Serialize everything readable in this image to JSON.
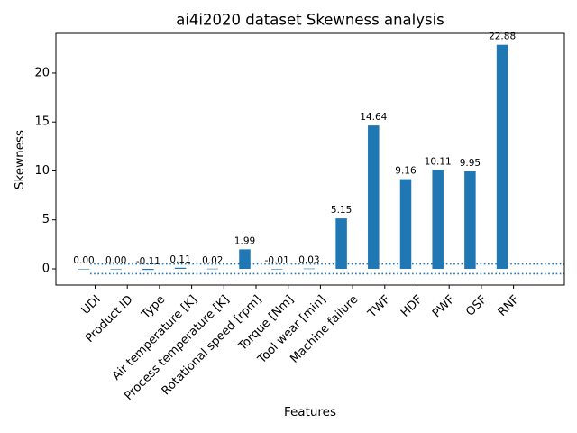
{
  "chart_data": {
    "type": "bar",
    "title": "ai4i2020 dataset Skewness analysis",
    "x_label": "Features",
    "y_label": "Skewness",
    "categories": [
      "UDI",
      "Product ID",
      "Type",
      "Air temperature [K]",
      "Process temperature [K]",
      "Rotational speed [rpm]",
      "Torque [Nm]",
      "Tool wear [min]",
      "Machine failure",
      "TWF",
      "HDF",
      "PWF",
      "OSF",
      "RNF"
    ],
    "values": [
      0.0,
      0.0,
      -0.11,
      0.11,
      0.02,
      1.99,
      -0.01,
      0.03,
      5.15,
      14.64,
      9.16,
      10.11,
      9.95,
      22.88
    ],
    "value_labels": [
      "0.00",
      "0.00",
      "-0.11",
      "0.11",
      "0.02",
      "1.99",
      "-0.01",
      "0.03",
      "5.15",
      "14.64",
      "9.16",
      "10.11",
      "9.95",
      "22.88"
    ],
    "color": "#1f77b4",
    "ylim": [
      -1.66,
      24.05
    ],
    "yticks": [
      0,
      5,
      10,
      15,
      20
    ],
    "hlines": [
      0.5,
      -0.5
    ],
    "hline_color": "#1f77b4"
  }
}
